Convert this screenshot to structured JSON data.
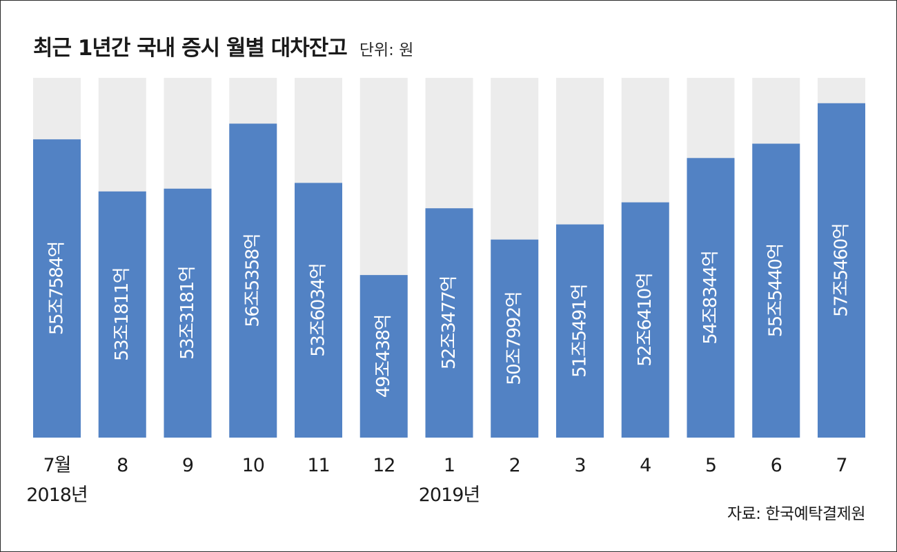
{
  "chart_data": {
    "type": "bar",
    "title": "최근 1년간 국내 증시 월별 대차잔고",
    "unit_label": "단위: 원",
    "source": "자료: 한국예탁결제원",
    "categories": [
      "7월",
      "8",
      "9",
      "10",
      "11",
      "12",
      "1",
      "2",
      "3",
      "4",
      "5",
      "6",
      "7"
    ],
    "year_labels": [
      {
        "category_index": 0,
        "text": "2018년"
      },
      {
        "category_index": 6,
        "text": "2019년"
      }
    ],
    "values": [
      55.7584,
      53.1811,
      53.3181,
      56.5358,
      53.6034,
      49.0438,
      52.3477,
      50.7992,
      51.5491,
      52.641,
      54.8344,
      55.544,
      57.546
    ],
    "value_labels": [
      "55조7584억",
      "53조1811억",
      "53조3181억",
      "56조5358억",
      "53조6034억",
      "49조438억",
      "52조3477억",
      "50조7992억",
      "51조5491억",
      "52조6410억",
      "54조8344억",
      "55조5440억",
      "57조5460억"
    ],
    "value_unit": "조원",
    "ylim": [
      41.0,
      58.8
    ],
    "colors": {
      "bar": "#5282c4",
      "track": "#ececec",
      "label": "#ffffff",
      "text": "#1a1a1a"
    }
  }
}
